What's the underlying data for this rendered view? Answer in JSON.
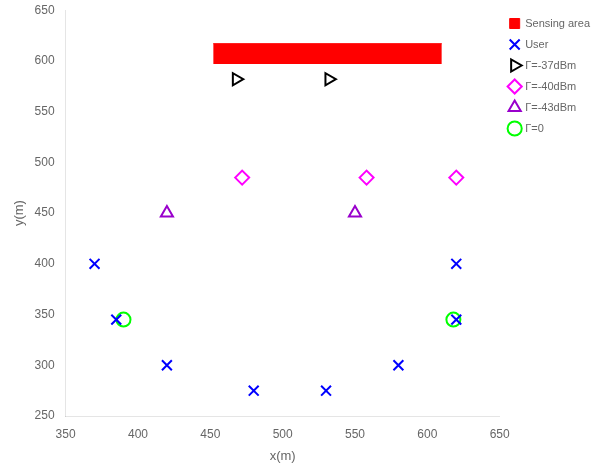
{
  "chart_data": {
    "type": "scatter",
    "xlabel": "x(m)",
    "ylabel": "y(m)",
    "xlim": [
      350,
      650
    ],
    "ylim": [
      250,
      650
    ],
    "xticks": [
      350,
      400,
      450,
      500,
      550,
      600,
      650
    ],
    "yticks": [
      250,
      300,
      350,
      400,
      450,
      500,
      550,
      600,
      650
    ],
    "grid": false,
    "legend": "upper right",
    "series": [
      {
        "name": "User",
        "color": "#0000FF",
        "marker": "x",
        "x": [
          370,
          385,
          420,
          480,
          530,
          580,
          620,
          620
        ],
        "y": [
          400,
          345,
          300,
          275,
          275,
          300,
          400,
          345
        ]
      },
      {
        "name": "Sensing area",
        "color": "#FF0000",
        "type": "rect",
        "x": [
          452,
          610
        ],
        "y": [
          597,
          617
        ]
      },
      {
        "name": "Γ=-37dBm",
        "color": "#000000",
        "marker": "triangle_right",
        "x": [
          468,
          532
        ],
        "y": [
          582,
          582
        ]
      },
      {
        "name": "Γ=-40dBm",
        "color": "#FF00FF",
        "marker": "diamond",
        "x": [
          472,
          558,
          620
        ],
        "y": [
          485,
          485,
          485
        ]
      },
      {
        "name": "Γ=-43dBm",
        "color": "#9900CC",
        "marker": "triangle",
        "x": [
          420,
          550
        ],
        "y": [
          450,
          450
        ]
      },
      {
        "name": "Γ=0",
        "color": "#00FF00",
        "marker": "circle",
        "x": [
          390,
          618
        ],
        "y": [
          345,
          345
        ]
      }
    ]
  }
}
